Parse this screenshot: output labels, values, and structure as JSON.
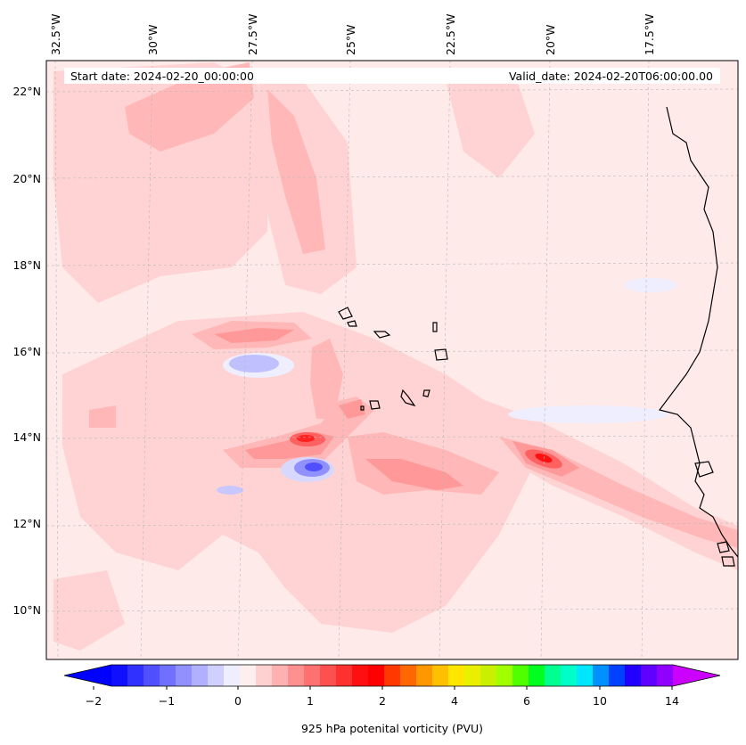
{
  "header": {
    "start_label": "Start date: 2024-02-20_00:00:00",
    "valid_label": "Valid_date: 2024-02-20T06:00:00.00"
  },
  "axes": {
    "lon_labels": [
      "32.5°W",
      "30°W",
      "27.5°W",
      "25°W",
      "22.5°W",
      "20°W",
      "17.5°W"
    ],
    "lat_labels": [
      "22°N",
      "20°N",
      "18°N",
      "16°N",
      "14°N",
      "12°N",
      "10°N"
    ]
  },
  "colorbar": {
    "label": "925 hPa potenital vorticity (PVU)",
    "ticks": [
      "−2",
      "−1",
      "0",
      "1",
      "2",
      "4",
      "6",
      "10",
      "14"
    ],
    "colors": [
      "#1010ff",
      "#3030ff",
      "#5050ff",
      "#7070ff",
      "#9090ff",
      "#b0b0ff",
      "#d0d0ff",
      "#eeeeff",
      "#ffeeee",
      "#ffd0d0",
      "#ffb0b0",
      "#ff9090",
      "#ff7070",
      "#ff5050",
      "#ff3030",
      "#ff1010",
      "#ff0000",
      "#ff3800",
      "#ff6800",
      "#ff9800",
      "#ffc000",
      "#ffe600",
      "#e8f000",
      "#c8f000",
      "#a0ff00",
      "#50ff00",
      "#00ff20",
      "#00ff90",
      "#00ffc8",
      "#00e6ff",
      "#0090ff",
      "#0040ff",
      "#2000ff",
      "#6000ff",
      "#9000ff"
    ],
    "under_color": "#0000ff",
    "over_color": "#cc00ff"
  }
}
